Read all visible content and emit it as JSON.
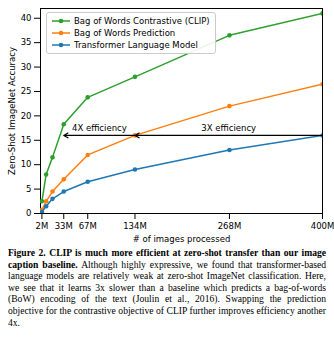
{
  "chart_data": {
    "type": "line",
    "xlabel": "# of images processed",
    "ylabel": "Zero-Shot ImageNet Accuracy",
    "x": [
      2,
      8,
      17,
      33,
      67,
      134,
      268,
      400
    ],
    "series": [
      {
        "name": "Bag of Words Contrastive (CLIP)",
        "color": "#2ca02c",
        "marker": "circle",
        "values": [
          2.5,
          8,
          11.5,
          18.3,
          23.8,
          28,
          36.5,
          41
        ]
      },
      {
        "name": "Bag of Words Prediction",
        "color": "#ff7f0e",
        "marker": "circle",
        "values": [
          0.7,
          2.5,
          4.5,
          7,
          12,
          16,
          22,
          26.5
        ]
      },
      {
        "name": "Transformer Language Model",
        "color": "#1f77b4",
        "marker": "circle",
        "values": [
          0.3,
          1.5,
          3,
          4.5,
          6.5,
          9,
          13,
          16
        ]
      }
    ],
    "xlim": [
      0,
      400
    ],
    "xticks": [
      {
        "value": 2,
        "label": "2M"
      },
      {
        "value": 33,
        "label": "33M"
      },
      {
        "value": 67,
        "label": "67M"
      },
      {
        "value": 134,
        "label": "134M"
      },
      {
        "value": 268,
        "label": "268M"
      },
      {
        "value": 400,
        "label": "400M"
      }
    ],
    "ylim": [
      0,
      42
    ],
    "yticks": [
      0,
      5,
      10,
      15,
      20,
      25,
      30,
      35,
      40
    ],
    "grid": false,
    "legend": "upper left",
    "annotations": [
      {
        "text": "4X efficiency",
        "x1": 134,
        "x2": 33,
        "y": 16
      },
      {
        "text": "3X efficiency",
        "x1": 400,
        "x2": 134,
        "y": 16
      }
    ],
    "caption_label": "Figure 2.",
    "caption_bold": "CLIP is much more efficient at zero-shot transfer than our image caption baseline.",
    "caption_text": "Although highly expressive, we found that transformer-based language models are relatively weak at zero-shot ImageNet classification. Here, we see that it learns 3x slower than a baseline which predicts a bag-of-words (BoW) encoding of the text (Joulin et al., 2016). Swapping the prediction objective for the contrastive objective of CLIP further improves efficiency another 4x."
  }
}
